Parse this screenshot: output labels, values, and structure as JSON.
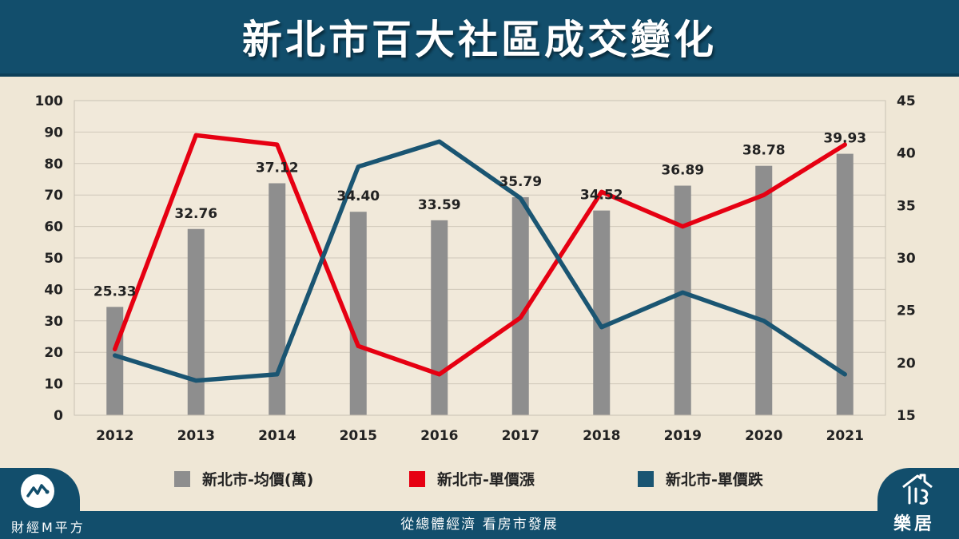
{
  "header": {
    "title": "新北市百大社區成交變化"
  },
  "footer": {
    "tagline": "從總體經濟 看房市發展"
  },
  "brand": {
    "left_name": "財經M平方",
    "right_name": "樂居"
  },
  "colors": {
    "header_bg": "#124e6c",
    "background": "#efe7d6",
    "bar": "#8e8e8e",
    "red": "#e60012",
    "blue": "#1a5572"
  },
  "chart_data": {
    "type": "bar",
    "categories": [
      "2012",
      "2013",
      "2014",
      "2015",
      "2016",
      "2017",
      "2018",
      "2019",
      "2020",
      "2021"
    ],
    "left_axis": {
      "min": 0,
      "max": 100,
      "step": 10,
      "ticks": [
        "0",
        "10",
        "20",
        "30",
        "40",
        "50",
        "60",
        "70",
        "80",
        "90",
        "100"
      ]
    },
    "right_axis": {
      "min": 15,
      "max": 45,
      "step": 5,
      "ticks": [
        "15",
        "20",
        "25",
        "30",
        "35",
        "40",
        "45"
      ]
    },
    "series": [
      {
        "name": "新北市-均價(萬)",
        "type": "bar",
        "axis": "right",
        "color": "#8e8e8e",
        "values": [
          25.33,
          32.76,
          37.12,
          34.4,
          33.59,
          35.79,
          34.52,
          36.89,
          38.78,
          39.93
        ],
        "labels": [
          "25.33",
          "32.76",
          "37.12",
          "34.40",
          "33.59",
          "35.79",
          "34.52",
          "36.89",
          "38.78",
          "39.93"
        ]
      },
      {
        "name": "新北市-單價漲",
        "type": "line",
        "axis": "left",
        "color": "#e60012",
        "values": [
          21,
          89,
          86,
          22,
          13,
          31,
          71,
          60,
          70,
          86
        ]
      },
      {
        "name": "新北市-單價跌",
        "type": "line",
        "axis": "left",
        "color": "#1a5572",
        "values": [
          19,
          11,
          13,
          79,
          87,
          69,
          28,
          39,
          30,
          13
        ]
      }
    ],
    "grid": true,
    "legend_position": "bottom"
  }
}
